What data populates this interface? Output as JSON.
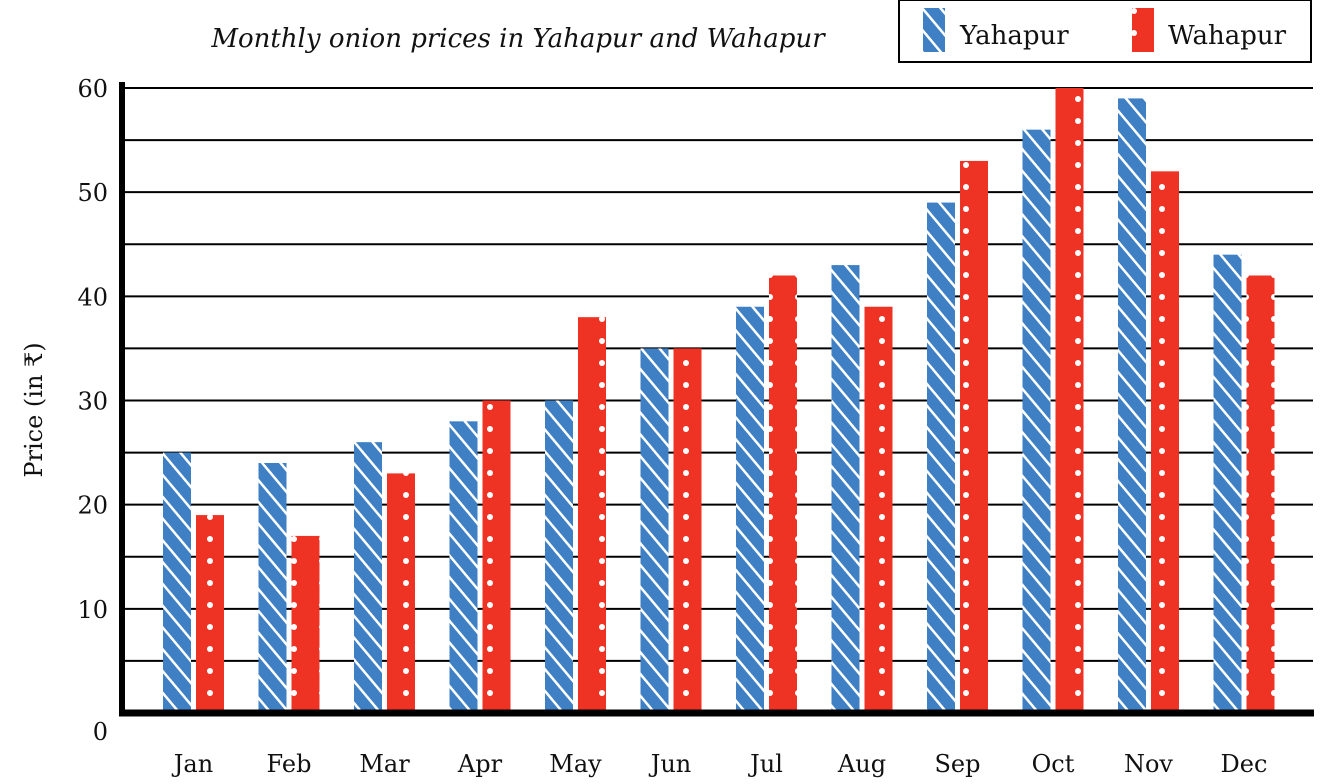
{
  "chart_data": {
    "type": "bar",
    "title": "Monthly onion prices in Yahapur and Wahapur",
    "xlabel": "",
    "ylabel": "Price (in ₹)",
    "ylim": [
      0,
      60
    ],
    "yticks": [
      "0",
      "10",
      "20",
      "30",
      "40",
      "50",
      "60"
    ],
    "grid": true,
    "legend_position": "top-right",
    "categories": [
      "Jan",
      "Feb",
      "Mar",
      "Apr",
      "May",
      "Jun",
      "Jul",
      "Aug",
      "Sep",
      "Oct",
      "Nov",
      "Dec"
    ],
    "series": [
      {
        "name": "Yahapur",
        "color": "#3f7fc4",
        "pattern": "diagonal-stripes",
        "values": [
          25,
          24,
          26,
          28,
          30,
          35,
          39,
          43,
          49,
          56,
          59,
          44
        ]
      },
      {
        "name": "Wahapur",
        "color": "#ee3224",
        "pattern": "dots",
        "values": [
          19,
          17,
          23,
          30,
          38,
          35,
          42,
          39,
          53,
          60,
          52,
          42
        ]
      }
    ]
  }
}
